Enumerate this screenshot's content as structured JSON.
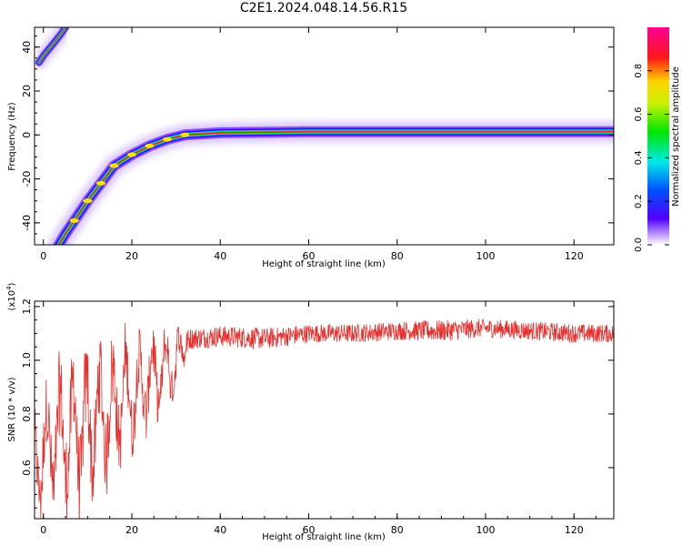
{
  "title": "C2E1.2024.048.14.56.R15",
  "chart_data": [
    {
      "type": "heatmap",
      "xlabel": "Height of straight line (km)",
      "ylabel": "Frequency (Hz)",
      "xlim": [
        -2,
        129
      ],
      "ylim": [
        -50,
        49
      ],
      "xticks": [
        0,
        20,
        40,
        60,
        80,
        100,
        120
      ],
      "yticks": [
        -40,
        -20,
        0,
        20,
        40
      ],
      "colorbar": {
        "label": "Normalized spectral amplitude",
        "range": [
          0,
          1
        ],
        "ticks": [
          "0.0",
          "0.2",
          "0.4",
          "0.6",
          "0.8"
        ]
      },
      "ridge": [
        {
          "x": 3.5,
          "y": -50
        },
        {
          "x": 5,
          "y": -45
        },
        {
          "x": 7,
          "y": -39
        },
        {
          "x": 10,
          "y": -30
        },
        {
          "x": 13,
          "y": -22
        },
        {
          "x": 16,
          "y": -14
        },
        {
          "x": 20,
          "y": -9
        },
        {
          "x": 24,
          "y": -5
        },
        {
          "x": 28,
          "y": -2
        },
        {
          "x": 32,
          "y": 0
        },
        {
          "x": 40,
          "y": 1
        },
        {
          "x": 60,
          "y": 1.5
        },
        {
          "x": 80,
          "y": 1.5
        },
        {
          "x": 100,
          "y": 1.5
        },
        {
          "x": 129,
          "y": 1.5
        }
      ],
      "upper_branch": [
        {
          "x": -1,
          "y": 33
        },
        {
          "x": 0,
          "y": 36
        },
        {
          "x": 2,
          "y": 41
        },
        {
          "x": 4,
          "y": 46
        },
        {
          "x": 5,
          "y": 49
        }
      ]
    },
    {
      "type": "line",
      "xlabel": "Height of straight line (km)",
      "ylabel": "SNR (10 * v/v)",
      "y_multiplier_label": "(x10",
      "y_multiplier_exp": "4",
      "y_multiplier_close": ")",
      "xlim": [
        -2,
        129
      ],
      "ylim": [
        0.41,
        1.22
      ],
      "xticks": [
        0,
        20,
        40,
        60,
        80,
        100,
        120
      ],
      "yticks": [
        "0.6",
        "0.8",
        "1.0",
        "1.2"
      ],
      "line_color": "#e8312e",
      "envelope": {
        "x": [
          -2,
          0,
          5,
          10,
          15,
          20,
          25,
          30,
          33,
          40,
          50,
          60,
          70,
          80,
          90,
          100,
          110,
          120,
          129
        ],
        "mean": [
          0.62,
          0.66,
          0.72,
          0.75,
          0.82,
          0.88,
          0.94,
          0.99,
          1.08,
          1.09,
          1.08,
          1.1,
          1.1,
          1.11,
          1.11,
          1.12,
          1.11,
          1.1,
          1.1
        ],
        "amp": [
          0.14,
          0.18,
          0.22,
          0.22,
          0.2,
          0.16,
          0.13,
          0.1,
          0.04,
          0.04,
          0.04,
          0.035,
          0.035,
          0.035,
          0.04,
          0.035,
          0.035,
          0.035,
          0.035
        ]
      }
    }
  ]
}
